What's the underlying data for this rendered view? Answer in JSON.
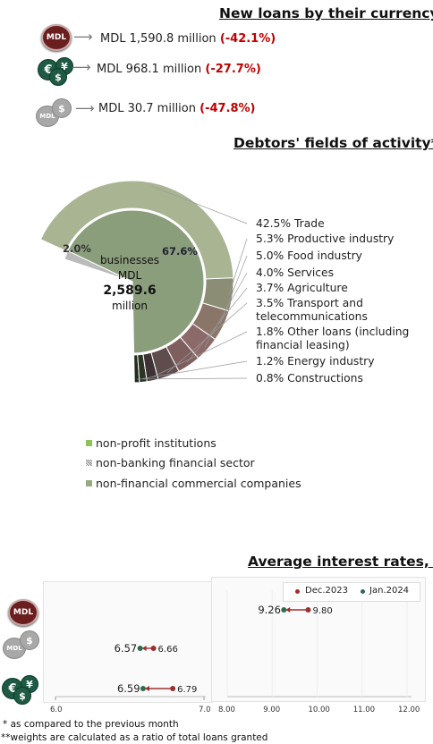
{
  "loans": {
    "title": "New loans by their currency*",
    "rows": [
      {
        "icon": "MDL",
        "text": "MDL 1,590.8 million",
        "change": "(-42.1%)"
      },
      {
        "icon": "",
        "text": "MDL 968.1 million",
        "change": "(-27.7%)"
      },
      {
        "icon": "MDL",
        "text": "MDL 30.7 million",
        "change": "(-47.8%)"
      }
    ]
  },
  "activity": {
    "title": "Debtors' fields of activity**",
    "center": {
      "line1": "businesses",
      "line2": "MDL",
      "line3": "2,589.6",
      "line4": "million"
    },
    "inner_labels": {
      "left": "2.0%",
      "right": "67.6%"
    },
    "legend": [
      {
        "label": "non-profit institutions",
        "color": "#8fc35a"
      },
      {
        "label": "non-banking financial sector",
        "color": "#999999"
      },
      {
        "label": "non-financial commercial companies",
        "color": "#97aa84"
      }
    ]
  },
  "rates": {
    "title": "Average interest rates, %",
    "legend": [
      "Dec.2023",
      "Jan.2024"
    ],
    "left_axis": [
      "6.0",
      "7.0"
    ],
    "right_axis": [
      "8.00",
      "9.00",
      "10.00",
      "11.00",
      "12.00"
    ]
  },
  "footnotes": [
    "* as compared to the previous month",
    "**weights are calculated as a ratio of total loans granted"
  ],
  "colors": {
    "change": "#c00000",
    "dec": "#9c2f2f",
    "jan": "#2e6b4f"
  },
  "chart_data": [
    {
      "type": "pie",
      "title": "Debtors' fields of activity**",
      "categories": [
        "Trade",
        "Productive industry",
        "Food industry",
        "Services",
        "Agriculture",
        "Transport and telecommunications",
        "Other loans (including financial leasing)",
        "Energy industry",
        "Constructions"
      ],
      "values": [
        42.5,
        5.3,
        5.0,
        4.0,
        3.7,
        3.5,
        1.8,
        1.2,
        0.8
      ],
      "labels": [
        "42.5%",
        "5.3%",
        "5.0%",
        "4.0%",
        "3.7%",
        "3.5%",
        "1.8%",
        "1.2%",
        "0.8%"
      ],
      "category_labels": [
        "Trade",
        "Productive industry",
        "Food industry",
        "Services",
        "Agriculture",
        "Transport and\ntelecommunications",
        "Other loans (including\nfinancial leasing)",
        "Energy industry",
        "Constructions"
      ]
    },
    {
      "type": "pie",
      "categories": [
        "non-financial commercial companies",
        "non-banking financial sector",
        "non-profit institutions"
      ],
      "values": [
        67.6,
        2.0,
        0.0
      ]
    },
    {
      "type": "scatter",
      "title": "Average interest rates, %",
      "series": [
        {
          "name": "Dec.2023",
          "values": [
            6.66,
            6.79,
            9.8
          ]
        },
        {
          "name": "Jan.2024",
          "values": [
            6.57,
            6.59,
            9.26
          ]
        }
      ],
      "categories": [
        "MDL (other)",
        "foreign currency",
        "MDL"
      ],
      "xlim_left": [
        6.0,
        7.0
      ],
      "xlim_right": [
        8.0,
        12.0
      ]
    }
  ]
}
